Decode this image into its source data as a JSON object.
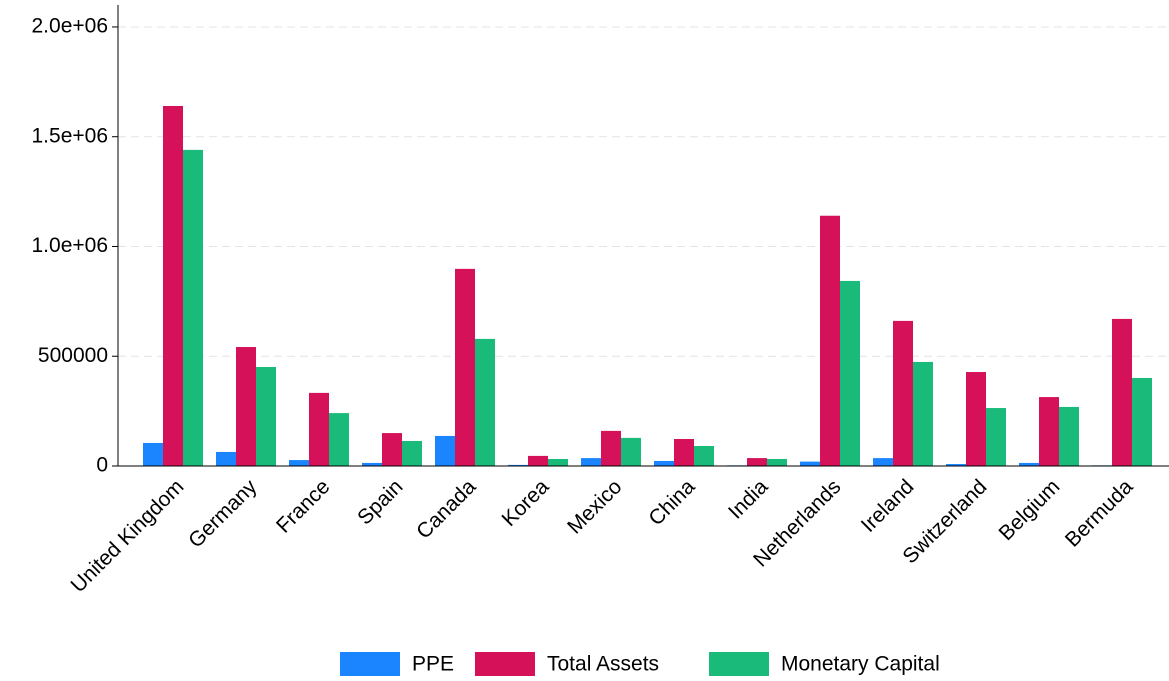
{
  "chart_data": {
    "type": "bar",
    "categories": [
      "United Kingdom",
      "Germany",
      "France",
      "Spain",
      "Canada",
      "Korea",
      "Mexico",
      "China",
      "India",
      "Netherlands",
      "Ireland",
      "Switzerland",
      "Belgium",
      "Bermuda"
    ],
    "series": [
      {
        "name": "PPE",
        "color": "#1a85ff",
        "values": [
          105000,
          64000,
          27000,
          14000,
          137000,
          5000,
          36000,
          23000,
          3000,
          20000,
          36000,
          9000,
          14000,
          3000
        ]
      },
      {
        "name": "Total Assets",
        "color": "#d41159",
        "values": [
          1640000,
          542000,
          333000,
          150000,
          898000,
          46000,
          160000,
          123000,
          36000,
          1140000,
          661000,
          428000,
          314000,
          670000
        ]
      },
      {
        "name": "Monetary Capital",
        "color": "#1aba7a",
        "values": [
          1440000,
          451000,
          241000,
          114000,
          579000,
          32000,
          128000,
          91000,
          32000,
          843000,
          474000,
          264000,
          269000,
          401000
        ]
      }
    ],
    "ylim": [
      0,
      2100000
    ],
    "yticks": [
      0,
      500000,
      {
        "value": 1000000,
        "label": "1.0e+06"
      },
      {
        "value": 1500000,
        "label": "1.5e+06"
      },
      {
        "value": 2000000,
        "label": "2.0e+06"
      }
    ],
    "grid": true,
    "legend": "bottom"
  }
}
